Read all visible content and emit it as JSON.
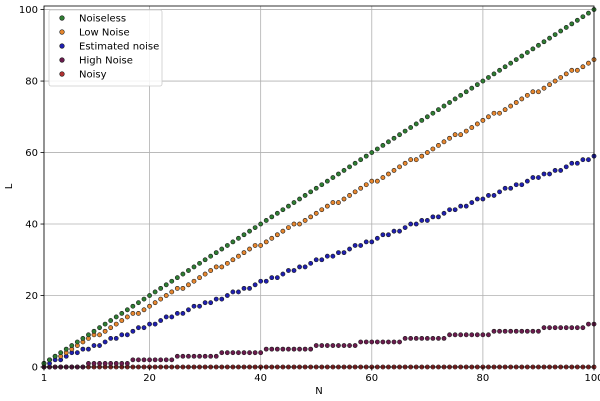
{
  "chart_data": {
    "type": "scatter",
    "title": "",
    "xlabel": "N",
    "ylabel": "L",
    "xlim": [
      1,
      100
    ],
    "ylim": [
      0,
      101
    ],
    "x": {
      "start": 1,
      "end": 100,
      "step": 1
    },
    "xticks": [
      1,
      20,
      40,
      60,
      80,
      100
    ],
    "yticks": [
      0,
      20,
      40,
      60,
      80,
      100
    ],
    "grid": true,
    "legend_position": "top-left",
    "series": [
      {
        "name": "Noiseless",
        "color": "#2e7d32",
        "slope": 1.0,
        "quantize": "none"
      },
      {
        "name": "Low Noise",
        "color": "#e6862e",
        "slope": 0.86,
        "quantize": "round"
      },
      {
        "name": "Estimated noise",
        "color": "#1f1fb0",
        "slope": 0.59,
        "quantize": "round"
      },
      {
        "name": "High Noise",
        "color": "#6a1b4d",
        "slope": 0.122,
        "quantize": "floor"
      },
      {
        "name": "Noisy",
        "color": "#b03030",
        "slope": 0.0,
        "quantize": "none"
      }
    ]
  }
}
